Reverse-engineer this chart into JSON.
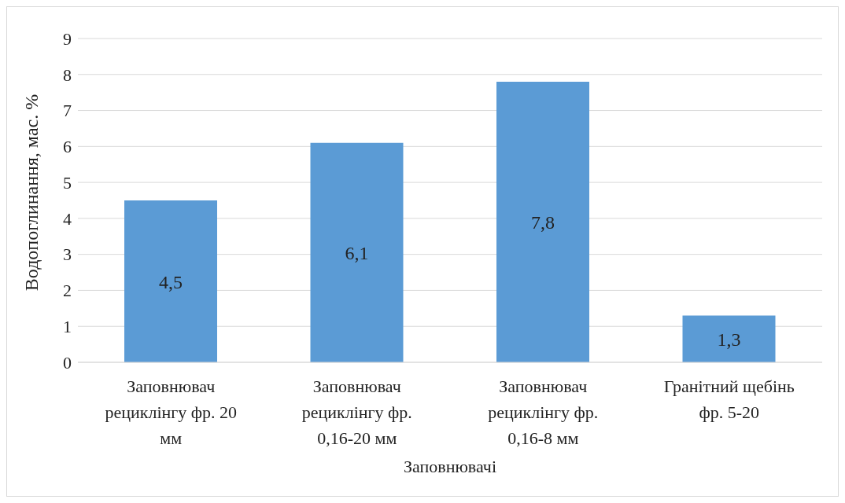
{
  "chart_data": {
    "type": "bar",
    "xlabel": "Заповнювачі",
    "ylabel": "Водопоглинання, мас. %",
    "categories": [
      "Заповнювач рециклінгу фр. 20 мм",
      "Заповнювач рециклінгу фр. 0,16-20 мм",
      "Заповнювач рециклінгу фр. 0,16-8 мм",
      "Гранітний щебінь фр. 5-20"
    ],
    "values": [
      4.5,
      6.1,
      7.8,
      1.3
    ],
    "value_labels": [
      "4,5",
      "6,1",
      "7,8",
      "1,3"
    ],
    "color": "#5b9bd5",
    "ylim": [
      0,
      9
    ],
    "yticks": [
      0,
      1,
      2,
      3,
      4,
      5,
      6,
      7,
      8,
      9
    ],
    "grid": "y"
  }
}
